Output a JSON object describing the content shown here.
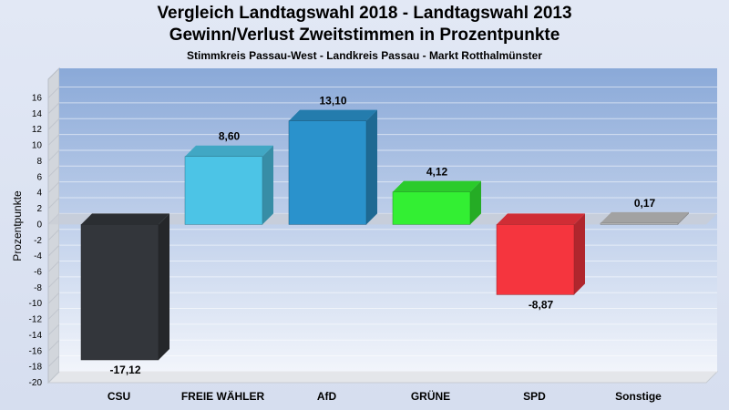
{
  "chart_data": {
    "type": "bar",
    "title": "Vergleich Landtagswahl 2018 - Landtagswahl 2013",
    "subtitle": "Gewinn/Verlust Zweitstimmen in Prozentpunkte",
    "caption": "Stimmkreis Passau-West - Landkreis Passau - Markt Rotthalmünster",
    "ylabel": "Prozentpunkte",
    "ylim": [
      -20,
      16
    ],
    "yticks": [
      "16",
      "14",
      "12",
      "10",
      "8",
      "6",
      "4",
      "2",
      "0",
      "-2",
      "-4",
      "-6",
      "-8",
      "-10",
      "-12",
      "-14",
      "-16",
      "-18",
      "-20"
    ],
    "grid": true,
    "categories": [
      "CSU",
      "FREIE WÄHLER",
      "AfD",
      "GRÜNE",
      "SPD",
      "Sonstige"
    ],
    "values": [
      -17.12,
      8.6,
      13.1,
      4.12,
      -8.87,
      0.17
    ],
    "labels": [
      "-17,12",
      "8,60",
      "13,10",
      "4,12",
      "-8,87",
      "0,17"
    ],
    "colors": [
      "#33363b",
      "#4cc4e6",
      "#2a92cc",
      "#33ef33",
      "#f5353e",
      "#bfbfbf"
    ]
  }
}
